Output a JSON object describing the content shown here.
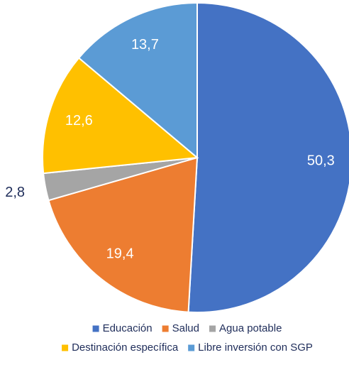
{
  "chart_data": {
    "type": "pie",
    "categories": [
      "Educación",
      "Salud",
      "Agua potable",
      "Destinación específica",
      "Libre inversión con SGP"
    ],
    "values": [
      50.3,
      19.4,
      2.8,
      12.6,
      13.7
    ],
    "value_labels": [
      "50,3",
      "19,4",
      "2,8",
      "12,6",
      "13,7"
    ],
    "colors": [
      "#4472c4",
      "#ed7d31",
      "#a5a5a5",
      "#ffc000",
      "#5b9bd5"
    ],
    "legend": "bottom"
  }
}
